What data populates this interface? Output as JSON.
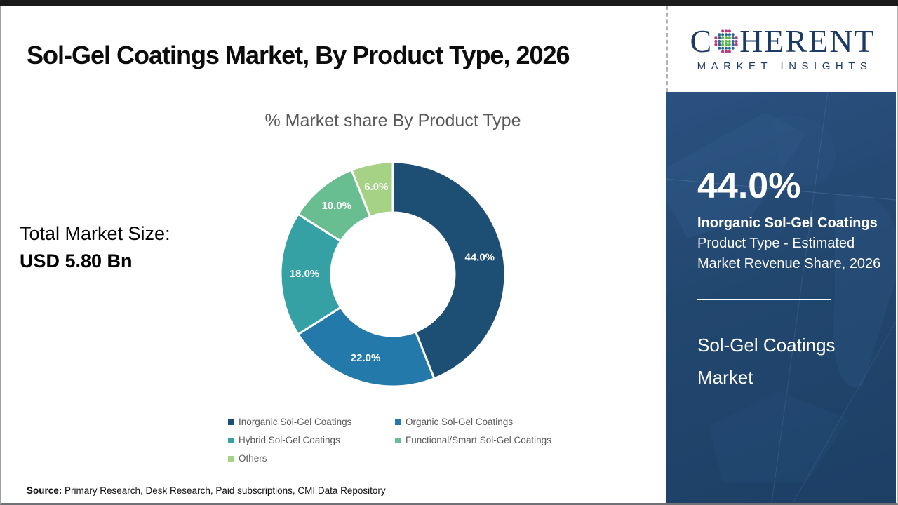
{
  "page": {
    "title": "Sol-Gel Coatings Market, By Product Type, 2026",
    "source_label": "Source:",
    "source_text": " Primary Research, Desk Research, Paid subscriptions, CMI Data Repository"
  },
  "left_panel": {
    "total_label": "Total Market Size:",
    "total_value": "USD 5.80 Bn"
  },
  "logo": {
    "word_start": "C",
    "word_end": "HERENT",
    "subtitle": "MARKET INSIGHTS",
    "brand_color": "#1b3a66",
    "globe_colors": {
      "center": "#5cb54e",
      "mid": "#2c6496",
      "outer": "#c03579"
    }
  },
  "sidebar": {
    "stat_value": "44.0%",
    "stat_title": "Inorganic Sol-Gel Coatings",
    "stat_desc": "Product Type - Estimated Market Revenue Share, 2026",
    "market_name": "Sol-Gel Coatings Market"
  },
  "chart_data": {
    "type": "pie",
    "subtype": "donut",
    "title": "% Market share By Product Type",
    "categories": [
      "Inorganic Sol-Gel Coatings",
      "Organic Sol-Gel Coatings",
      "Hybrid Sol-Gel Coatings",
      "Functional/Smart Sol-Gel Coatings",
      "Others"
    ],
    "values": [
      44.0,
      22.0,
      18.0,
      10.0,
      6.0
    ],
    "labels": [
      "44.0%",
      "22.0%",
      "18.0%",
      "10.0%",
      "6.0%"
    ],
    "colors": [
      "#1d4e74",
      "#2379a9",
      "#35a1a4",
      "#68be90",
      "#a5d284"
    ],
    "start_angle_deg": 0,
    "direction": "clockwise",
    "outer_radius": 160,
    "inner_radius": 88,
    "legend_position": "bottom"
  }
}
